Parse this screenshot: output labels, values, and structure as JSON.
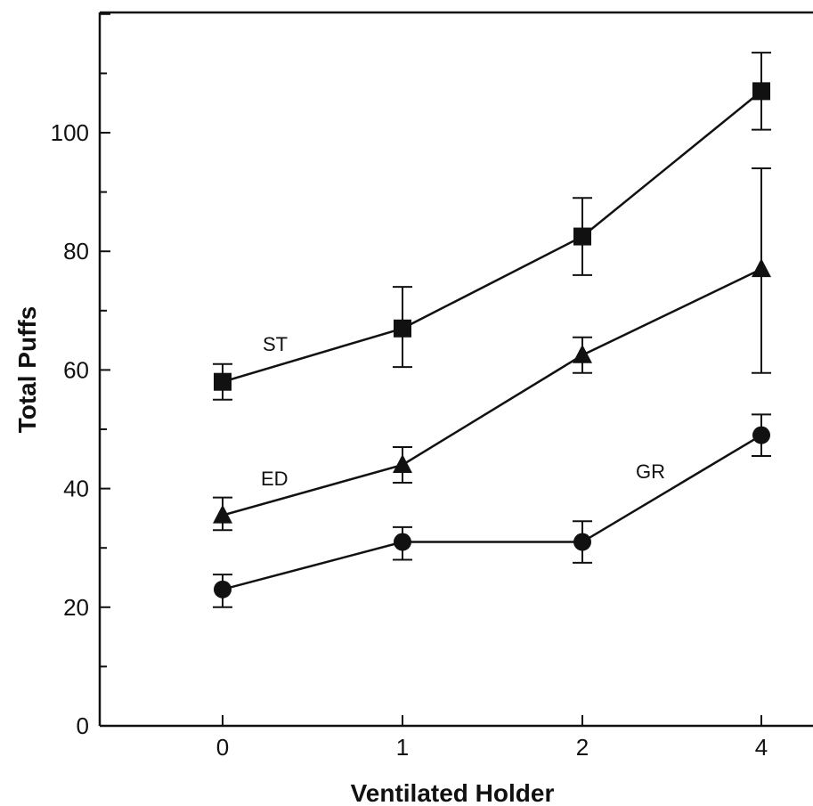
{
  "chart_data": {
    "type": "line",
    "title": "",
    "xlabel": "Ventilated Holder",
    "ylabel": "Total Puffs",
    "categories": [
      "0",
      "1",
      "2",
      "4"
    ],
    "ylim": [
      0,
      120
    ],
    "yticks": [
      0,
      20,
      40,
      60,
      80,
      100
    ],
    "grid": false,
    "legend": "none",
    "series": [
      {
        "name": "ST",
        "marker": "square",
        "values": [
          58,
          67,
          82.5,
          107
        ],
        "error_low": [
          55,
          60.5,
          76,
          100.5
        ],
        "error_high": [
          61,
          74,
          89,
          113.5
        ]
      },
      {
        "name": "ED",
        "marker": "triangle",
        "values": [
          35.5,
          44,
          62.5,
          77
        ],
        "error_low": [
          33,
          41,
          59.5,
          59.5
        ],
        "error_high": [
          38.5,
          47,
          65.5,
          94
        ]
      },
      {
        "name": "GR",
        "marker": "circle",
        "values": [
          23,
          31,
          31,
          49
        ],
        "error_low": [
          20,
          28,
          27.5,
          45.5
        ],
        "error_high": [
          25.5,
          33.5,
          34.5,
          52.5
        ]
      }
    ]
  }
}
